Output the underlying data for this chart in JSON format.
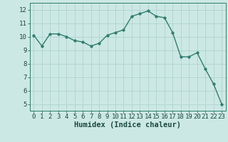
{
  "x": [
    0,
    1,
    2,
    3,
    4,
    5,
    6,
    7,
    8,
    9,
    10,
    11,
    12,
    13,
    14,
    15,
    16,
    17,
    18,
    19,
    20,
    21,
    22,
    23
  ],
  "y": [
    10.1,
    9.3,
    10.2,
    10.2,
    10.0,
    9.7,
    9.6,
    9.3,
    9.5,
    10.1,
    10.3,
    10.5,
    11.5,
    11.7,
    11.9,
    11.5,
    11.4,
    10.3,
    8.5,
    8.5,
    8.8,
    7.6,
    6.5,
    5.0
  ],
  "xlabel": "Humidex (Indice chaleur)",
  "xlim": [
    -0.5,
    23.5
  ],
  "ylim": [
    4.5,
    12.5
  ],
  "yticks": [
    5,
    6,
    7,
    8,
    9,
    10,
    11,
    12
  ],
  "xticks": [
    0,
    1,
    2,
    3,
    4,
    5,
    6,
    7,
    8,
    9,
    10,
    11,
    12,
    13,
    14,
    15,
    16,
    17,
    18,
    19,
    20,
    21,
    22,
    23
  ],
  "line_color": "#2e7d6e",
  "marker_color": "#2e7d6e",
  "bg_color": "#cce8e4",
  "grid_color": "#aacfcb",
  "xlabel_fontsize": 7.5,
  "tick_fontsize": 6.5,
  "linewidth": 1.0,
  "markersize": 2.5
}
